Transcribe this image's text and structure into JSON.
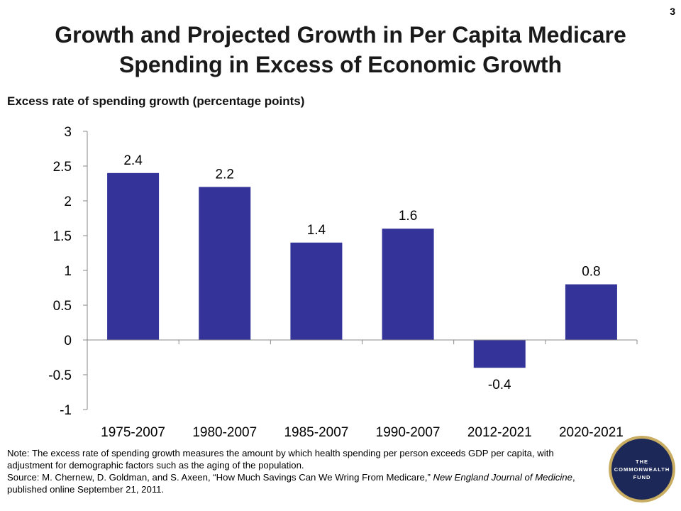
{
  "page_number": "3",
  "title": {
    "line1": "Growth and Projected Growth in Per Capita Medicare",
    "line2": "Spending in Excess of Economic Growth"
  },
  "chart_data": {
    "type": "bar",
    "title": "Growth and Projected Growth in Per Capita Medicare Spending in Excess of Economic Growth",
    "ylabel": "Excess rate of spending growth (percentage points)",
    "xlabel": "",
    "categories": [
      "1975-2007",
      "1980-2007",
      "1985-2007",
      "1990-2007",
      "2012-2021",
      "2020-2021"
    ],
    "values": [
      2.4,
      2.2,
      1.4,
      1.6,
      -0.4,
      0.8
    ],
    "data_labels": [
      "2.4",
      "2.2",
      "1.4",
      "1.6",
      "-0.4",
      "0.8"
    ],
    "ylim": [
      -1,
      3
    ],
    "yticks": [
      "3",
      "2.5",
      "2",
      "1.5",
      "1",
      "0.5",
      "0",
      "-0.5",
      "-1"
    ],
    "ytick_values": [
      3,
      2.5,
      2,
      1.5,
      1,
      0.5,
      0,
      -0.5,
      -1
    ],
    "bar_color": "#333399",
    "grid": false,
    "legend": "none"
  },
  "note": {
    "line1": "Note: The excess rate of spending growth measures the amount by which health spending per person exceeds GDP per capita, with adjustment for demographic factors such as the aging of the population.",
    "source_prefix": "Source: M. Chernew, D. Goldman, and S. Axeen, “How Much Savings Can We Wring From Medicare,” ",
    "source_journal": "New England Journal of Medicine",
    "source_suffix": ", published online September 21, 2011."
  },
  "logo": {
    "line1": "THE",
    "line2": "COMMONWEALTH",
    "line3": "FUND",
    "outer_color": "#c9ad63",
    "inner_color": "#1c2958"
  }
}
